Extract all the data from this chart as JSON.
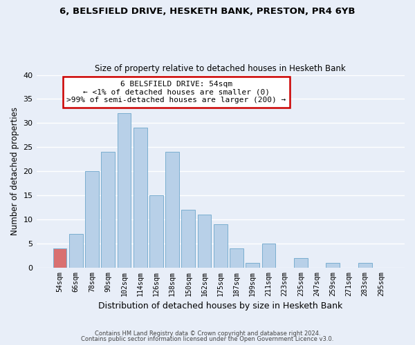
{
  "title1": "6, BELSFIELD DRIVE, HESKETH BANK, PRESTON, PR4 6YB",
  "title2": "Size of property relative to detached houses in Hesketh Bank",
  "xlabel": "Distribution of detached houses by size in Hesketh Bank",
  "ylabel": "Number of detached properties",
  "bin_labels": [
    "54sqm",
    "66sqm",
    "78sqm",
    "90sqm",
    "102sqm",
    "114sqm",
    "126sqm",
    "138sqm",
    "150sqm",
    "162sqm",
    "175sqm",
    "187sqm",
    "199sqm",
    "211sqm",
    "223sqm",
    "235sqm",
    "247sqm",
    "259sqm",
    "271sqm",
    "283sqm",
    "295sqm"
  ],
  "bar_heights": [
    4,
    7,
    20,
    24,
    32,
    29,
    15,
    24,
    12,
    11,
    9,
    4,
    1,
    5,
    0,
    2,
    0,
    1,
    0,
    1,
    0
  ],
  "bar_color": "#b8d0e8",
  "bar_edge_color": "#7aaed0",
  "annotation_line1": "6 BELSFIELD DRIVE: 54sqm",
  "annotation_line2": "← <1% of detached houses are smaller (0)",
  "annotation_line3": ">99% of semi-detached houses are larger (200) →",
  "annotation_box_facecolor": "#ffffff",
  "annotation_box_edgecolor": "#cc0000",
  "highlight_bar_index": 0,
  "highlight_bar_color": "#d97070",
  "ylim": [
    0,
    40
  ],
  "yticks": [
    0,
    5,
    10,
    15,
    20,
    25,
    30,
    35,
    40
  ],
  "footer1": "Contains HM Land Registry data © Crown copyright and database right 2024.",
  "footer2": "Contains public sector information licensed under the Open Government Licence v3.0.",
  "bg_color": "#e8eef8",
  "plot_bg_color": "#e8eef8"
}
